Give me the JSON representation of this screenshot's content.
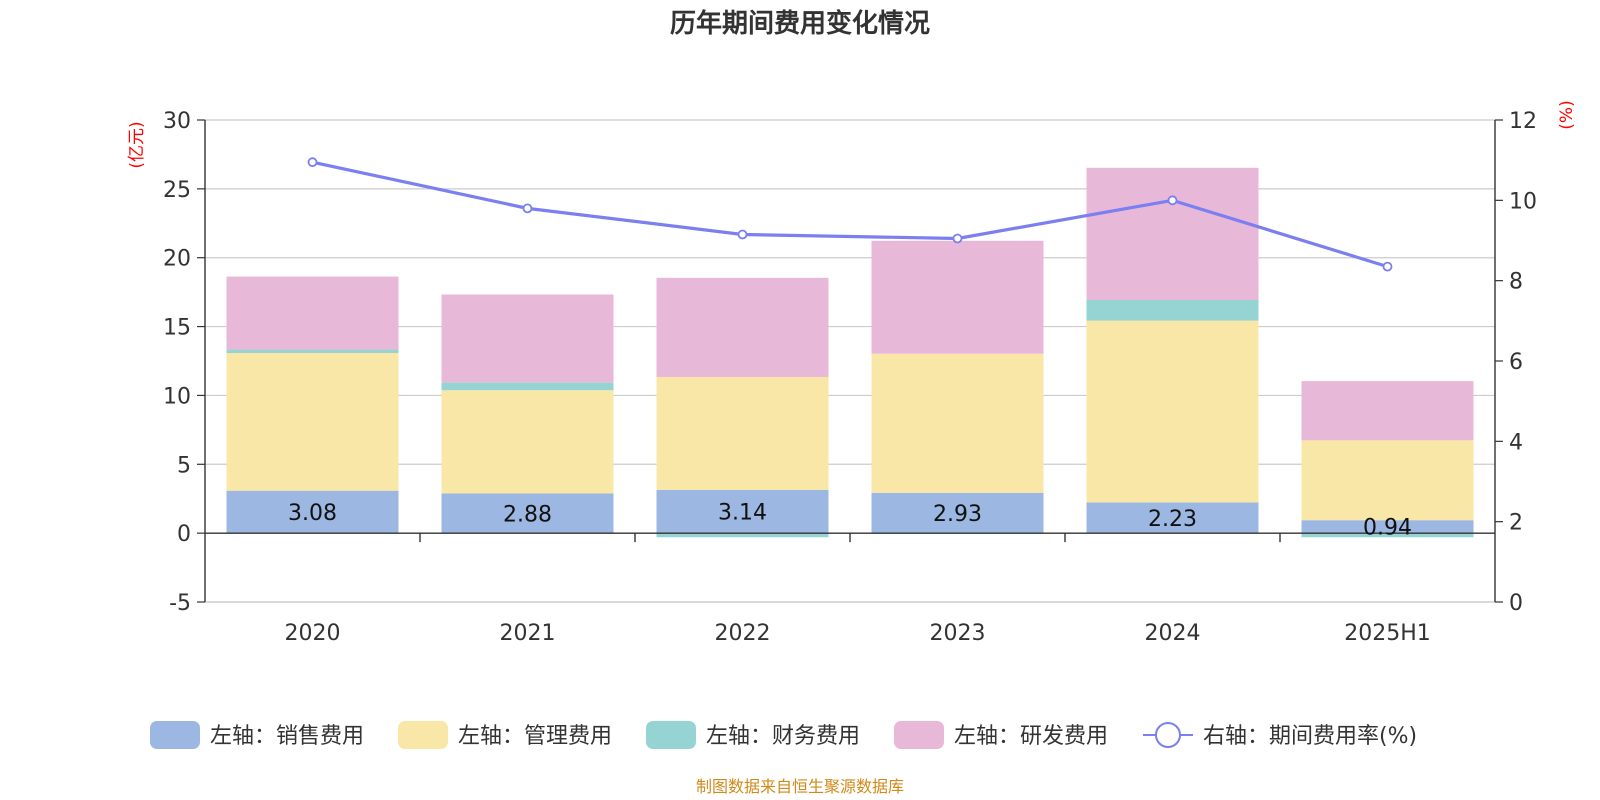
{
  "chart_data": {
    "type": "bar",
    "title": "历年期间费用变化情况",
    "categories": [
      "2020",
      "2021",
      "2022",
      "2023",
      "2024",
      "2025H1"
    ],
    "left_axis": {
      "unit": "(亿元)",
      "ylim": [
        -5,
        30
      ],
      "ticks": [
        -5,
        0,
        5,
        10,
        15,
        20,
        25,
        30
      ]
    },
    "right_axis": {
      "unit": "(%)",
      "ylim": [
        0,
        12
      ],
      "ticks": [
        0,
        2,
        4,
        6,
        8,
        10,
        12
      ]
    },
    "grid": true,
    "legend_position": "bottom",
    "series": [
      {
        "name": "左轴：销售费用",
        "type": "bar",
        "axis": "left",
        "color": "#9cb7e2",
        "values": [
          3.08,
          2.88,
          3.14,
          2.93,
          2.23,
          0.94
        ],
        "labels": [
          "3.08",
          "2.88",
          "3.14",
          "2.93",
          "2.23",
          "0.94"
        ]
      },
      {
        "name": "左轴：管理费用",
        "type": "bar",
        "axis": "left",
        "color": "#f8e7a7",
        "values": [
          10.0,
          7.5,
          8.2,
          10.1,
          13.2,
          5.8
        ]
      },
      {
        "name": "左轴：财务费用",
        "type": "bar",
        "axis": "left",
        "color": "#96d4d4",
        "values": [
          0.25,
          0.55,
          -0.3,
          -0.05,
          1.5,
          -0.3
        ]
      },
      {
        "name": "左轴：研发费用",
        "type": "bar",
        "axis": "left",
        "color": "#e8b8d8",
        "values": [
          5.3,
          6.4,
          7.2,
          8.2,
          9.6,
          4.3
        ]
      },
      {
        "name": "右轴：期间费用率(%)",
        "type": "line",
        "axis": "right",
        "color": "#7b7ff0",
        "values": [
          10.95,
          9.8,
          9.15,
          9.05,
          10.0,
          8.35
        ]
      }
    ]
  },
  "footer": {
    "source": "制图数据来自恒生聚源数据库"
  }
}
